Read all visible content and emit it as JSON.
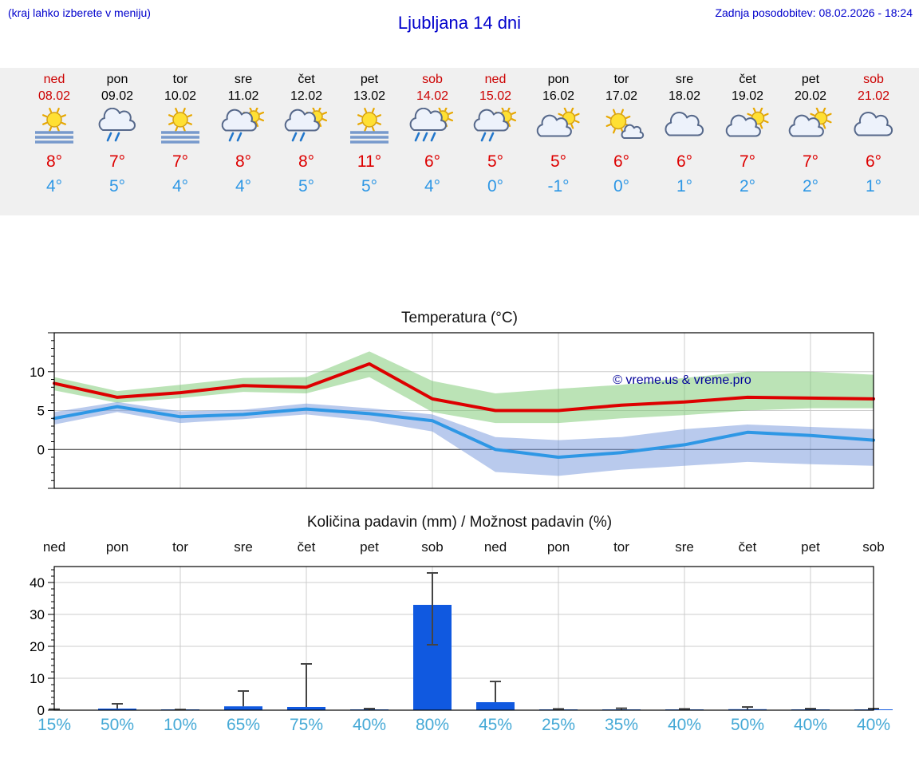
{
  "header": {
    "hint": "(kraj lahko izberete v meniju)",
    "title": "Ljubljana 14 dni",
    "last_update": "Zadnja posodobitev: 08.02.2026 - 18:24"
  },
  "colors": {
    "header_blue": "#0000cc",
    "weekend_red": "#cc0000",
    "high_temp_red": "#dd0000",
    "low_temp_blue": "#2e97e5",
    "percent_blue": "#45a9d6",
    "bar_blue": "#1059e0",
    "strip_bg": "#f0f0f0",
    "watermark_blue": "#000099",
    "grid_gray": "#cccccc",
    "error_bar_gray": "#444444"
  },
  "days": [
    {
      "name": "ned",
      "date": "08.02",
      "weekend": true,
      "icon": "sun-fog",
      "high": "8°",
      "low": "4°"
    },
    {
      "name": "pon",
      "date": "09.02",
      "weekend": false,
      "icon": "cloud-rain",
      "high": "7°",
      "low": "5°"
    },
    {
      "name": "tor",
      "date": "10.02",
      "weekend": false,
      "icon": "sun-fog",
      "high": "7°",
      "low": "4°"
    },
    {
      "name": "sre",
      "date": "11.02",
      "weekend": false,
      "icon": "sun-cloud-rain",
      "high": "8°",
      "low": "4°"
    },
    {
      "name": "čet",
      "date": "12.02",
      "weekend": false,
      "icon": "sun-cloud-rain",
      "high": "8°",
      "low": "5°"
    },
    {
      "name": "pet",
      "date": "13.02",
      "weekend": false,
      "icon": "sun-fog",
      "high": "11°",
      "low": "5°"
    },
    {
      "name": "sob",
      "date": "14.02",
      "weekend": true,
      "icon": "sun-cloud-rain-heavy",
      "high": "6°",
      "low": "4°"
    },
    {
      "name": "ned",
      "date": "15.02",
      "weekend": true,
      "icon": "sun-cloud-rain",
      "high": "5°",
      "low": "0°"
    },
    {
      "name": "pon",
      "date": "16.02",
      "weekend": false,
      "icon": "sun-cloud",
      "high": "5°",
      "low": "-1°"
    },
    {
      "name": "tor",
      "date": "17.02",
      "weekend": false,
      "icon": "sun-small-cloud",
      "high": "6°",
      "low": "0°"
    },
    {
      "name": "sre",
      "date": "18.02",
      "weekend": false,
      "icon": "cloud",
      "high": "6°",
      "low": "1°"
    },
    {
      "name": "čet",
      "date": "19.02",
      "weekend": false,
      "icon": "sun-cloud",
      "high": "7°",
      "low": "2°"
    },
    {
      "name": "pet",
      "date": "20.02",
      "weekend": false,
      "icon": "sun-cloud",
      "high": "7°",
      "low": "2°"
    },
    {
      "name": "sob",
      "date": "21.02",
      "weekend": true,
      "icon": "cloud",
      "high": "6°",
      "low": "1°"
    }
  ],
  "chart_data": [
    {
      "type": "line",
      "title": "Temperatura (°C)",
      "x": [
        "ned 08.02",
        "pon 09.02",
        "tor 10.02",
        "sre 11.02",
        "čet 12.02",
        "pet 13.02",
        "sob 14.02",
        "ned 15.02",
        "pon 16.02",
        "tor 17.02",
        "sre 18.02",
        "čet 19.02",
        "pet 20.02",
        "sob 21.02"
      ],
      "ylim": [
        -5,
        15
      ],
      "yticks": [
        0,
        5,
        10
      ],
      "watermark": "© vreme.us & vreme.pro",
      "series": [
        {
          "name": "max temperature",
          "color": "#dd0000",
          "values": [
            8.5,
            6.7,
            7.3,
            8.2,
            8.0,
            11.0,
            6.5,
            5.0,
            5.0,
            5.7,
            6.1,
            6.7,
            6.6,
            6.5
          ]
        },
        {
          "name": "min temperature",
          "color": "#2e97e5",
          "values": [
            4.0,
            5.5,
            4.2,
            4.5,
            5.2,
            4.6,
            3.7,
            0.0,
            -1.0,
            -0.4,
            0.6,
            2.2,
            1.8,
            1.2
          ]
        }
      ],
      "bands": [
        {
          "name": "max temperature range",
          "color": "rgba(120,200,110,0.5)",
          "upper": [
            9.3,
            7.5,
            8.3,
            9.2,
            9.3,
            12.6,
            8.8,
            7.2,
            7.8,
            8.3,
            9.2,
            10.0,
            10.0,
            9.6
          ],
          "lower": [
            7.6,
            6.0,
            6.6,
            7.4,
            7.2,
            9.3,
            4.8,
            3.4,
            3.4,
            4.0,
            4.4,
            5.0,
            5.3,
            5.3
          ]
        },
        {
          "name": "min temperature range",
          "color": "rgba(115,150,220,0.5)",
          "upper": [
            4.8,
            6.1,
            4.9,
            5.1,
            5.9,
            5.3,
            4.5,
            1.6,
            1.2,
            1.6,
            2.6,
            3.2,
            2.9,
            2.6
          ],
          "lower": [
            3.2,
            4.8,
            3.4,
            3.9,
            4.5,
            3.7,
            2.3,
            -2.9,
            -3.4,
            -2.6,
            -2.1,
            -1.6,
            -1.9,
            -2.1
          ]
        }
      ]
    },
    {
      "type": "bar",
      "title": "Količina padavin (mm) / Možnost padavin (%)",
      "categories": [
        "ned",
        "pon",
        "tor",
        "sre",
        "čet",
        "pet",
        "sob",
        "ned",
        "pon",
        "tor",
        "sre",
        "čet",
        "pet",
        "sob"
      ],
      "values": [
        0,
        0.5,
        0.05,
        1.2,
        1.0,
        0.1,
        33,
        2.5,
        0.1,
        0.15,
        0.1,
        0.3,
        0.15,
        0.15
      ],
      "error_low": [
        0,
        0,
        0,
        0,
        0,
        0,
        20.5,
        0,
        0,
        0,
        0,
        0,
        0,
        0
      ],
      "error_high": [
        0.3,
        2.0,
        0.2,
        6.0,
        14.5,
        0.5,
        43,
        9.0,
        0.4,
        0.6,
        0.4,
        1.0,
        0.5,
        0.5
      ],
      "probabilities": [
        "15%",
        "50%",
        "10%",
        "65%",
        "75%",
        "40%",
        "80%",
        "45%",
        "25%",
        "35%",
        "40%",
        "50%",
        "40%",
        "40%"
      ],
      "ylim": [
        0,
        45
      ],
      "yticks": [
        0,
        10,
        20,
        30,
        40
      ]
    }
  ]
}
